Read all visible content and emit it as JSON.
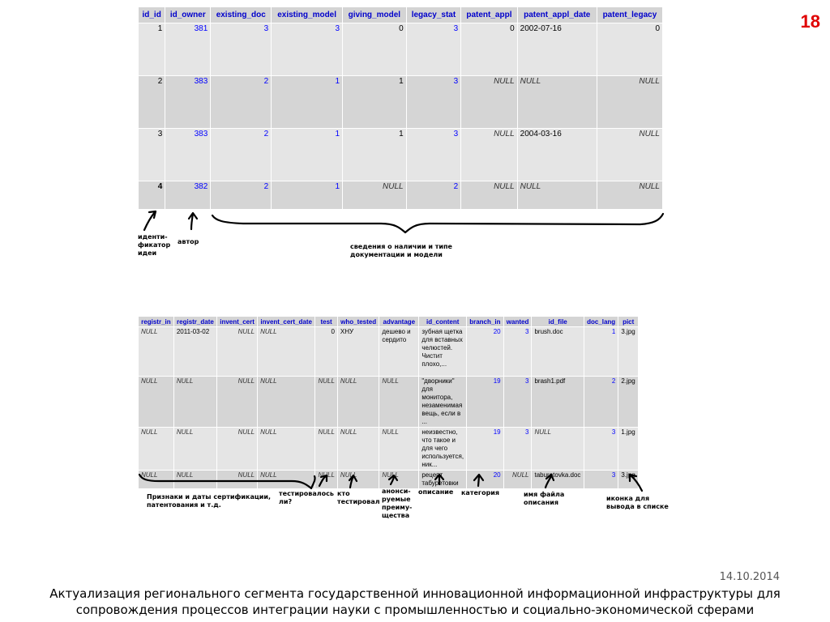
{
  "slide_number": "18",
  "table1": {
    "headers": [
      "id_id",
      "id_owner",
      "existing_doc",
      "existing_model",
      "giving_model",
      "legacy_stat",
      "patent_appl",
      "patent_appl_date",
      "patent_legacy"
    ],
    "rows": [
      [
        "1",
        "381",
        "3",
        "3",
        "0",
        "3",
        "0",
        "2002-07-16",
        "0"
      ],
      [
        "2",
        "383",
        "2",
        "1",
        "1",
        "3",
        "NULL",
        "NULL",
        "NULL"
      ],
      [
        "3",
        "383",
        "2",
        "1",
        "1",
        "3",
        "NULL",
        "2004-03-16",
        "NULL"
      ],
      [
        "4",
        "382",
        "2",
        "1",
        "NULL",
        "2",
        "NULL",
        "NULL",
        "NULL"
      ]
    ]
  },
  "table2": {
    "headers": [
      "registr_in",
      "registr_date",
      "invent_cert",
      "invent_cert_date",
      "test",
      "who_tested",
      "advantage",
      "id_content",
      "branch_in",
      "wanted",
      "id_file",
      "doc_lang",
      "pict"
    ],
    "rows": [
      [
        "NULL",
        "2011-03-02",
        "NULL",
        "NULL",
        "0",
        "ХНУ",
        "дешево и сердито",
        "зубная щетка для вставных челюстей. Чистит плохо,...",
        "20",
        "3",
        "brush.doc",
        "1",
        "3.jpg"
      ],
      [
        "NULL",
        "NULL",
        "NULL",
        "NULL",
        "NULL",
        "NULL",
        "NULL",
        "\"дворники\" для монитора, незаменимая вещь, если в ...",
        "19",
        "3",
        "brash1.pdf",
        "2",
        "2.jpg"
      ],
      [
        "NULL",
        "NULL",
        "NULL",
        "NULL",
        "NULL",
        "NULL",
        "NULL",
        "неизвестно, что такое и для чего используется, ник...",
        "19",
        "3",
        "NULL",
        "3",
        "1.jpg"
      ],
      [
        "NULL",
        "NULL",
        "NULL",
        "NULL",
        "NULL",
        "NULL",
        "NULL",
        "рецепт табуретовки",
        "20",
        "NULL",
        "taburetovka.doc",
        "3",
        "3.jpg"
      ]
    ]
  },
  "annotations_top": {
    "idea_id": "иденти-\nфикатор\nидеи",
    "author": "автор",
    "docs_info": "сведения о наличии и типе\nдокументации и модели"
  },
  "annotations_bottom": {
    "cert": "Признаки и даты сертификации,\nпатентования и т.д.",
    "tested": "тестировалось\nли?",
    "who": "кто\nтестировал",
    "advantages": "анонси-\nруемые\nпреиму-\nщества",
    "description": "описание",
    "category": "категория",
    "filename": "имя файла\nописания",
    "icon": "иконка для\nвывода в списке"
  },
  "footer": {
    "date": "14.10.2014",
    "text_line1": "Актуализация регионального сегмента государственной инновационной информационной инфраструктуры для",
    "text_line2": "сопровождения процессов интеграции науки с промышленностью и социально-экономической сферами"
  }
}
